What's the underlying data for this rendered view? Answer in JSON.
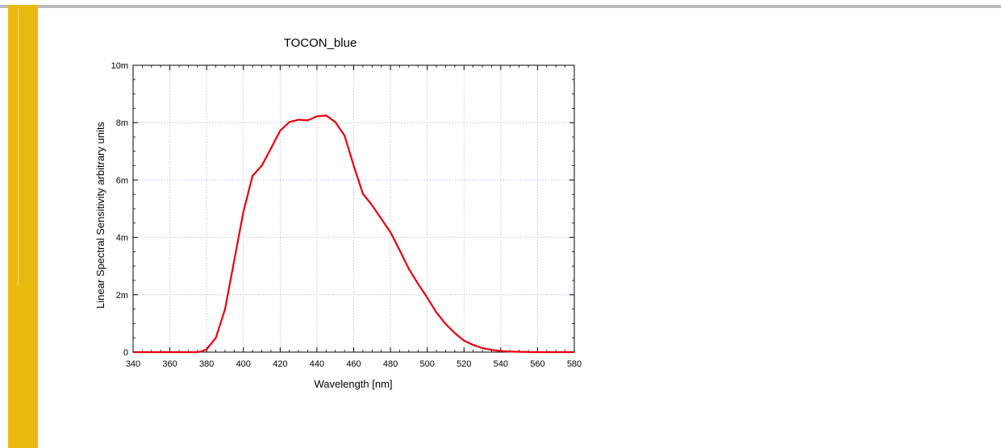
{
  "colors": {
    "sidebar": "#ecb90e",
    "top_rule": "#bcbcbc",
    "series_line": "#e8000b",
    "grid": "#b4b4e6"
  },
  "chart_data": {
    "type": "line",
    "title": "TOCON_blue",
    "xlabel": "Wavelength [nm]",
    "ylabel": "Linear Spectral Sensitivity  arbitrary units",
    "xlim": [
      340,
      580
    ],
    "ylim": [
      0,
      0.01
    ],
    "grid": true,
    "x_ticks": [
      340,
      360,
      380,
      400,
      420,
      440,
      460,
      480,
      500,
      520,
      540,
      560,
      580
    ],
    "x_tick_labels": [
      "340",
      "360",
      "380",
      "400",
      "420",
      "440",
      "460",
      "480",
      "500",
      "520",
      "540",
      "560",
      "580"
    ],
    "y_ticks": [
      0,
      0.002,
      0.004,
      0.006,
      0.008,
      0.01
    ],
    "y_tick_labels": [
      "0",
      "2m",
      "4m",
      "6m",
      "8m",
      "10m"
    ],
    "series": [
      {
        "x": [
          340,
          350,
          360,
          370,
          375,
          377,
          380,
          385,
          390,
          395,
          400,
          405,
          410,
          415,
          420,
          425,
          430,
          435,
          440,
          445,
          450,
          455,
          460,
          465,
          470,
          475,
          480,
          485,
          490,
          495,
          500,
          505,
          510,
          515,
          520,
          525,
          530,
          535,
          540,
          545,
          550,
          560,
          570,
          580
        ],
        "y": [
          0,
          0,
          0,
          0,
          0,
          2e-05,
          0.0001,
          0.0005,
          0.0015,
          0.0032,
          0.0049,
          0.00615,
          0.0065,
          0.0071,
          0.00772,
          0.00802,
          0.0081,
          0.00808,
          0.00822,
          0.00825,
          0.00802,
          0.00755,
          0.0065,
          0.00552,
          0.00512,
          0.00465,
          0.00418,
          0.00355,
          0.0029,
          0.00238,
          0.0019,
          0.00138,
          0.00098,
          0.00066,
          0.0004,
          0.00025,
          0.00014,
          8e-05,
          4e-05,
          2e-05,
          1e-05,
          0,
          0,
          0
        ]
      }
    ]
  }
}
